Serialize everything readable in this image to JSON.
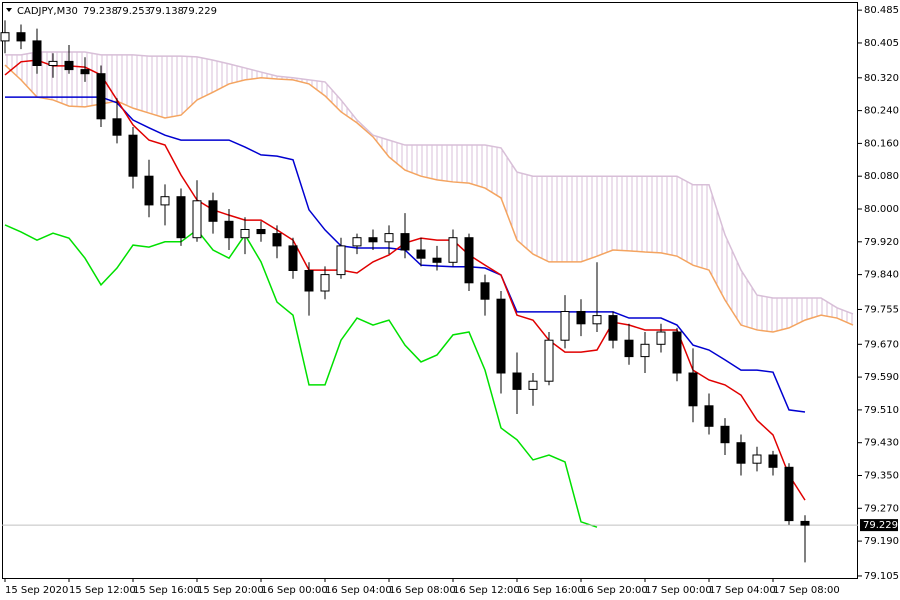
{
  "chart_data": {
    "type": "candlestick",
    "header": {
      "symbol": "CADJPY,M30",
      "open": 79.238,
      "high": 79.253,
      "low": 79.138,
      "close": 79.229
    },
    "last_price": 79.229,
    "ylim": [
      79.1,
      80.5
    ],
    "yticks": [
      80.485,
      80.405,
      {
        "value": 80.32,
        "label": "80.320"
      },
      {
        "value": 80.24,
        "label": "80.240"
      },
      {
        "value": 80.16,
        "label": "80.160"
      },
      {
        "value": 80.08,
        "label": "80.080"
      },
      {
        "value": 80,
        "label": "80.000"
      },
      {
        "value": 79.92,
        "label": "79.920"
      },
      {
        "value": 79.84,
        "label": "79.840"
      },
      79.755,
      {
        "value": 79.67,
        "label": "79.670"
      },
      {
        "value": 79.59,
        "label": "79.590"
      },
      {
        "value": 79.51,
        "label": "79.510"
      },
      {
        "value": 79.43,
        "label": "79.430"
      },
      {
        "value": 79.35,
        "label": "79.350"
      },
      {
        "value": 79.27,
        "label": "79.270"
      },
      {
        "value": 79.19,
        "label": "79.190"
      },
      79.105
    ],
    "categories": [
      "15 Sep 2020",
      null,
      null,
      null,
      "15 Sep 12:00",
      null,
      null,
      null,
      "15 Sep 16:00",
      null,
      null,
      null,
      "15 Sep 20:00",
      null,
      null,
      null,
      "16 Sep 00:00",
      null,
      null,
      null,
      "16 Sep 04:00",
      null,
      null,
      null,
      "16 Sep 08:00",
      null,
      null,
      null,
      "16 Sep 12:00",
      null,
      null,
      null,
      "16 Sep 16:00",
      null,
      null,
      null,
      "16 Sep 20:00",
      null,
      null,
      null,
      "17 Sep 00:00",
      null,
      null,
      null,
      "17 Sep 04:00",
      null,
      null,
      null,
      "17 Sep 08:00",
      null,
      null,
      null,
      null,
      null
    ],
    "open": [
      80.41,
      80.43,
      80.41,
      80.35,
      80.36,
      80.34,
      80.33,
      80.22,
      80.18,
      80.08,
      80.01,
      80.03,
      79.93,
      80.02,
      79.97,
      79.93,
      79.95,
      79.94,
      79.91,
      79.85,
      79.8,
      79.84,
      79.91,
      79.93,
      79.92,
      79.94,
      79.9,
      79.88,
      79.87,
      79.93,
      79.82,
      79.78,
      79.6,
      79.56,
      79.58,
      79.68,
      79.75,
      79.72,
      79.74,
      79.68,
      79.64,
      79.67,
      79.7,
      79.6,
      79.52,
      79.47,
      79.43,
      79.38,
      79.4,
      79.37,
      79.238,
      null,
      null,
      null
    ],
    "high": [
      80.46,
      80.45,
      80.44,
      80.38,
      80.4,
      80.37,
      80.35,
      80.27,
      80.2,
      80.12,
      80.06,
      80.05,
      80.07,
      80.04,
      80.0,
      79.98,
      79.97,
      79.96,
      79.93,
      79.87,
      79.86,
      79.93,
      79.94,
      79.95,
      79.96,
      79.99,
      79.93,
      79.91,
      79.95,
      79.94,
      79.84,
      79.8,
      79.65,
      79.6,
      79.7,
      79.79,
      79.78,
      79.87,
      79.75,
      79.72,
      79.7,
      79.72,
      79.71,
      79.66,
      79.55,
      79.49,
      79.45,
      79.42,
      79.41,
      79.38,
      79.253,
      null,
      null,
      null
    ],
    "low": [
      80.38,
      80.39,
      80.33,
      80.32,
      80.33,
      80.31,
      80.2,
      80.16,
      80.05,
      79.98,
      79.96,
      79.91,
      79.92,
      79.94,
      79.9,
      79.89,
      79.92,
      79.88,
      79.83,
      79.74,
      79.78,
      79.83,
      79.89,
      79.9,
      79.89,
      79.88,
      79.86,
      79.85,
      79.86,
      79.8,
      79.74,
      79.55,
      79.5,
      79.52,
      79.57,
      79.66,
      79.69,
      79.7,
      79.66,
      79.62,
      79.6,
      79.65,
      79.58,
      79.48,
      79.45,
      79.4,
      79.35,
      79.36,
      79.35,
      79.23,
      79.138,
      null,
      null,
      null
    ],
    "close": [
      80.43,
      80.41,
      80.35,
      80.36,
      80.34,
      80.33,
      80.22,
      80.18,
      80.08,
      80.01,
      80.03,
      79.93,
      80.02,
      79.97,
      79.93,
      79.95,
      79.94,
      79.91,
      79.85,
      79.8,
      79.84,
      79.91,
      79.93,
      79.92,
      79.94,
      79.9,
      79.88,
      79.87,
      79.93,
      79.82,
      79.78,
      79.6,
      79.56,
      79.58,
      79.68,
      79.75,
      79.72,
      79.74,
      79.68,
      79.64,
      79.67,
      79.7,
      79.6,
      79.52,
      79.47,
      79.43,
      79.38,
      79.4,
      79.37,
      79.24,
      79.229,
      null,
      null,
      null
    ],
    "series": [
      {
        "color": "#e00000",
        "values": [
          80.327,
          80.359,
          80.363,
          80.349,
          80.349,
          80.346,
          80.327,
          80.266,
          80.205,
          80.168,
          80.156,
          80.083,
          80.022,
          79.998,
          79.985,
          79.973,
          79.973,
          79.949,
          79.924,
          79.851,
          79.851,
          79.851,
          79.844,
          79.871,
          79.888,
          79.917,
          79.929,
          79.924,
          79.924,
          79.888,
          79.863,
          79.839,
          79.741,
          79.729,
          79.68,
          79.651,
          79.651,
          79.656,
          79.724,
          79.717,
          79.705,
          79.705,
          79.705,
          79.607,
          79.583,
          79.571,
          79.546,
          79.485,
          79.449,
          79.351,
          79.29,
          null,
          null,
          null
        ]
      },
      {
        "color": "#0000d0",
        "values": [
          80.273,
          80.273,
          80.273,
          80.273,
          80.273,
          80.273,
          80.273,
          80.259,
          80.217,
          80.198,
          80.18,
          80.168,
          80.168,
          80.168,
          80.168,
          80.151,
          80.132,
          80.129,
          80.12,
          79.998,
          79.949,
          79.91,
          79.905,
          79.905,
          79.905,
          79.9,
          79.863,
          79.861,
          79.859,
          79.859,
          79.856,
          79.839,
          79.749,
          79.749,
          79.749,
          79.749,
          79.749,
          79.749,
          79.749,
          79.734,
          79.734,
          79.734,
          79.717,
          79.668,
          79.656,
          79.632,
          79.607,
          79.607,
          79.602,
          79.51,
          79.505,
          null,
          null,
          null
        ]
      },
      {
        "color": "#00e000",
        "values": [
          79.961,
          79.944,
          79.924,
          79.941,
          79.929,
          79.88,
          79.815,
          79.856,
          79.912,
          79.907,
          79.92,
          79.92,
          79.949,
          79.9,
          79.88,
          79.937,
          79.871,
          79.773,
          79.741,
          79.571,
          79.571,
          79.68,
          79.734,
          79.717,
          79.729,
          79.668,
          79.627,
          79.644,
          79.693,
          79.7,
          79.607,
          79.466,
          79.437,
          79.388,
          79.4,
          79.383,
          79.237,
          79.224,
          null,
          null,
          null,
          null,
          null,
          null,
          null,
          null,
          null,
          null,
          null,
          null,
          null,
          null,
          null,
          null
        ]
      },
      {
        "color": "#f4a460",
        "values": [
          80.351,
          80.315,
          80.273,
          80.266,
          80.251,
          80.249,
          80.256,
          80.263,
          80.246,
          80.234,
          80.222,
          80.229,
          80.266,
          80.285,
          80.305,
          80.315,
          80.32,
          80.317,
          80.315,
          80.305,
          80.276,
          80.237,
          80.21,
          80.176,
          80.127,
          80.095,
          80.08,
          80.071,
          80.066,
          80.063,
          80.051,
          80.027,
          79.924,
          79.89,
          79.871,
          79.871,
          79.871,
          79.885,
          79.9,
          79.898,
          79.895,
          79.893,
          79.885,
          79.863,
          79.851,
          79.778,
          79.717,
          79.705,
          79.7,
          79.71,
          79.729,
          79.741,
          79.734,
          79.717
        ]
      },
      {
        "color": "#d8bfd8",
        "values": [
          80.376,
          80.376,
          80.383,
          80.383,
          80.383,
          80.383,
          80.376,
          80.376,
          80.376,
          80.373,
          80.373,
          80.373,
          80.371,
          80.363,
          80.354,
          80.344,
          80.334,
          80.324,
          80.32,
          80.315,
          80.31,
          80.266,
          80.217,
          80.18,
          80.168,
          80.156,
          80.156,
          80.156,
          80.156,
          80.156,
          80.156,
          80.149,
          80.09,
          80.08,
          80.08,
          80.08,
          80.08,
          80.08,
          80.08,
          80.08,
          80.08,
          80.08,
          80.08,
          80.059,
          80.059,
          79.937,
          79.851,
          79.79,
          79.783,
          79.783,
          79.783,
          79.783,
          79.759,
          79.744
        ]
      }
    ]
  }
}
